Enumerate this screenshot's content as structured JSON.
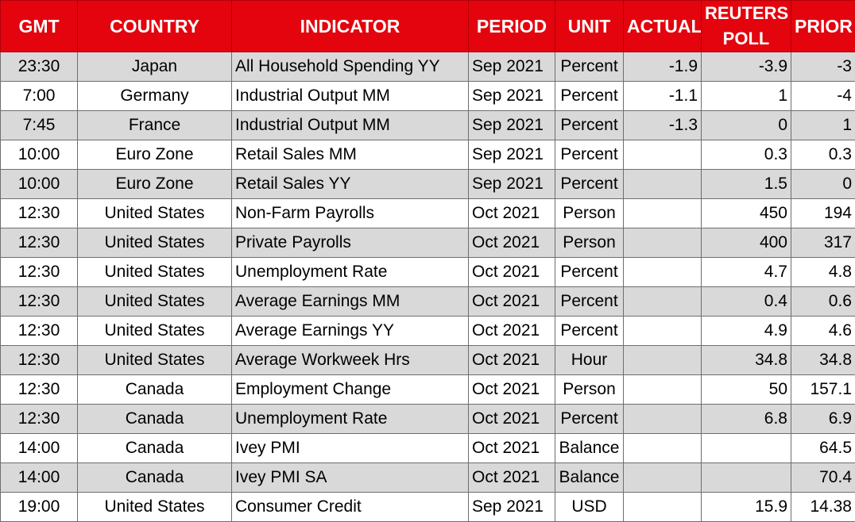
{
  "headers": {
    "gmt": "GMT",
    "country": "COUNTRY",
    "indicator": "INDICATOR",
    "period": "PERIOD",
    "unit": "UNIT",
    "actual": "ACTUAL",
    "poll_line1": "REUTERS",
    "poll_line2": "POLL",
    "prior": "PRIOR"
  },
  "colors": {
    "header_bg": "#e3040d",
    "header_text": "#ffffff",
    "row_shade": "#d9d9d9",
    "row_plain": "#ffffff"
  },
  "rows": [
    {
      "gmt": "23:30",
      "country": "Japan",
      "indicator": "All Household Spending YY",
      "period": "Sep 2021",
      "unit": "Percent",
      "actual": "-1.9",
      "poll": "-3.9",
      "prior": "-3"
    },
    {
      "gmt": "7:00",
      "country": "Germany",
      "indicator": "Industrial Output MM",
      "period": "Sep 2021",
      "unit": "Percent",
      "actual": "-1.1",
      "poll": "1",
      "prior": "-4"
    },
    {
      "gmt": "7:45",
      "country": "France",
      "indicator": "Industrial Output MM",
      "period": "Sep 2021",
      "unit": "Percent",
      "actual": "-1.3",
      "poll": "0",
      "prior": "1"
    },
    {
      "gmt": "10:00",
      "country": "Euro Zone",
      "indicator": "Retail Sales MM",
      "period": "Sep 2021",
      "unit": "Percent",
      "actual": "",
      "poll": "0.3",
      "prior": "0.3"
    },
    {
      "gmt": "10:00",
      "country": "Euro Zone",
      "indicator": "Retail Sales YY",
      "period": "Sep 2021",
      "unit": "Percent",
      "actual": "",
      "poll": "1.5",
      "prior": "0"
    },
    {
      "gmt": "12:30",
      "country": "United States",
      "indicator": "Non-Farm Payrolls",
      "period": "Oct 2021",
      "unit": "Person",
      "actual": "",
      "poll": "450",
      "prior": "194"
    },
    {
      "gmt": "12:30",
      "country": "United States",
      "indicator": "Private Payrolls",
      "period": "Oct 2021",
      "unit": "Person",
      "actual": "",
      "poll": "400",
      "prior": "317"
    },
    {
      "gmt": "12:30",
      "country": "United States",
      "indicator": "Unemployment Rate",
      "period": "Oct 2021",
      "unit": "Percent",
      "actual": "",
      "poll": "4.7",
      "prior": "4.8"
    },
    {
      "gmt": "12:30",
      "country": "United States",
      "indicator": "Average Earnings MM",
      "period": "Oct 2021",
      "unit": "Percent",
      "actual": "",
      "poll": "0.4",
      "prior": "0.6"
    },
    {
      "gmt": "12:30",
      "country": "United States",
      "indicator": "Average Earnings YY",
      "period": "Oct 2021",
      "unit": "Percent",
      "actual": "",
      "poll": "4.9",
      "prior": "4.6"
    },
    {
      "gmt": "12:30",
      "country": "United States",
      "indicator": "Average Workweek Hrs",
      "period": "Oct 2021",
      "unit": "Hour",
      "actual": "",
      "poll": "34.8",
      "prior": "34.8"
    },
    {
      "gmt": "12:30",
      "country": "Canada",
      "indicator": "Employment Change",
      "period": "Oct 2021",
      "unit": "Person",
      "actual": "",
      "poll": "50",
      "prior": "157.1"
    },
    {
      "gmt": "12:30",
      "country": "Canada",
      "indicator": "Unemployment Rate",
      "period": "Oct 2021",
      "unit": "Percent",
      "actual": "",
      "poll": "6.8",
      "prior": "6.9"
    },
    {
      "gmt": "14:00",
      "country": "Canada",
      "indicator": "Ivey PMI",
      "period": "Oct 2021",
      "unit": "Balance",
      "actual": "",
      "poll": "",
      "prior": "64.5"
    },
    {
      "gmt": "14:00",
      "country": "Canada",
      "indicator": "Ivey PMI SA",
      "period": "Oct 2021",
      "unit": "Balance",
      "actual": "",
      "poll": "",
      "prior": "70.4"
    },
    {
      "gmt": "19:00",
      "country": "United States",
      "indicator": "Consumer Credit",
      "period": "Sep 2021",
      "unit": "USD",
      "actual": "",
      "poll": "15.9",
      "prior": "14.38"
    }
  ]
}
